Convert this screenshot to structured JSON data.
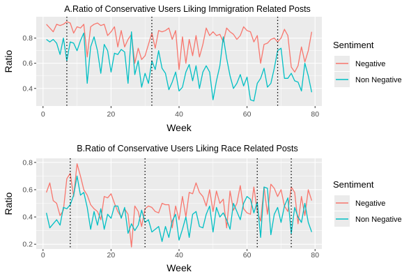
{
  "colors": {
    "negative": "#F8766D",
    "non_negative": "#00BFC4",
    "panel": "#EBEBEB",
    "grid": "#ffffff"
  },
  "chart_data": [
    {
      "type": "line",
      "title": "A.Ratio of Conservative Users Liking Immigration Related Posts",
      "xlabel": "Week",
      "ylabel": "Ratio",
      "xlim": [
        -2,
        82
      ],
      "ylim": [
        0.26,
        0.97
      ],
      "xticks": [
        "0",
        "20",
        "40",
        "60",
        "80"
      ],
      "yticks": [
        "0.4",
        "0.6",
        "0.8"
      ],
      "vlines": [
        7,
        32,
        69
      ],
      "legend": {
        "title": "Sentiment",
        "position": "right",
        "entries": [
          "Negative",
          "Non Negative"
        ]
      },
      "x": [
        1,
        2,
        3,
        4,
        5,
        6,
        7,
        8,
        9,
        10,
        11,
        12,
        13,
        14,
        15,
        16,
        17,
        18,
        19,
        20,
        21,
        22,
        23,
        24,
        25,
        26,
        27,
        28,
        29,
        30,
        31,
        32,
        33,
        34,
        35,
        36,
        37,
        38,
        39,
        40,
        41,
        42,
        43,
        44,
        45,
        46,
        47,
        48,
        49,
        50,
        51,
        52,
        53,
        54,
        55,
        56,
        57,
        58,
        59,
        60,
        61,
        62,
        63,
        64,
        65,
        66,
        67,
        68,
        69,
        70,
        71,
        72,
        73,
        74,
        75,
        76,
        77,
        78,
        79
      ],
      "series": [
        {
          "name": "Negative",
          "values": [
            0.91,
            0.88,
            0.85,
            0.91,
            0.9,
            0.91,
            0.93,
            0.92,
            0.84,
            0.89,
            0.88,
            0.91,
            0.65,
            0.89,
            0.91,
            0.92,
            0.9,
            0.91,
            0.82,
            0.85,
            0.89,
            0.73,
            0.86,
            0.73,
            0.79,
            0.83,
            0.6,
            0.72,
            0.63,
            0.66,
            0.75,
            0.84,
            0.72,
            0.86,
            0.85,
            0.86,
            0.88,
            0.79,
            0.86,
            0.55,
            0.81,
            0.6,
            0.79,
            0.66,
            0.82,
            0.65,
            0.75,
            0.88,
            0.82,
            0.85,
            0.82,
            0.83,
            0.77,
            0.88,
            0.85,
            0.83,
            0.79,
            0.82,
            0.89,
            0.86,
            0.85,
            0.77,
            0.82,
            0.6,
            0.75,
            0.76,
            0.79,
            0.8,
            0.77,
            0.8,
            0.87,
            0.82,
            0.57,
            0.53,
            0.58,
            0.73,
            0.61,
            0.7,
            0.85
          ]
        },
        {
          "name": "Non Negative",
          "values": [
            0.79,
            0.77,
            0.79,
            0.76,
            0.67,
            0.8,
            0.62,
            0.77,
            0.76,
            0.7,
            0.78,
            0.84,
            0.44,
            0.73,
            0.81,
            0.7,
            0.52,
            0.75,
            0.7,
            0.53,
            0.68,
            0.67,
            0.71,
            0.69,
            0.44,
            0.85,
            0.51,
            0.62,
            0.41,
            0.52,
            0.44,
            0.62,
            0.55,
            0.7,
            0.56,
            0.52,
            0.39,
            0.45,
            0.53,
            0.38,
            0.41,
            0.53,
            0.59,
            0.46,
            0.58,
            0.4,
            0.53,
            0.58,
            0.53,
            0.31,
            0.46,
            0.58,
            0.81,
            0.64,
            0.5,
            0.4,
            0.44,
            0.51,
            0.42,
            0.49,
            0.31,
            0.3,
            0.44,
            0.48,
            0.56,
            0.41,
            0.44,
            0.56,
            0.7,
            0.72,
            0.48,
            0.48,
            0.52,
            0.46,
            0.45,
            0.38,
            0.6,
            0.5,
            0.37
          ]
        }
      ]
    },
    {
      "type": "line",
      "title": "B.Ratio of Conservative Users Liking Race Related Posts",
      "xlabel": "Week",
      "ylabel": "Ratio",
      "xlim": [
        -2,
        82
      ],
      "ylim": [
        0.165,
        0.83
      ],
      "xticks": [
        "0",
        "20",
        "40",
        "60",
        "80"
      ],
      "yticks": [
        "0.2",
        "0.4",
        "0.6",
        "0.8"
      ],
      "vlines": [
        8,
        30,
        63,
        73
      ],
      "legend": {
        "title": "Sentiment",
        "position": "right",
        "entries": [
          "Negative",
          "Non Negative"
        ]
      },
      "x": [
        1,
        2,
        3,
        4,
        5,
        6,
        7,
        8,
        9,
        10,
        11,
        12,
        13,
        14,
        15,
        16,
        17,
        18,
        19,
        20,
        21,
        22,
        23,
        24,
        25,
        26,
        27,
        28,
        29,
        30,
        31,
        32,
        33,
        34,
        35,
        36,
        37,
        38,
        39,
        40,
        41,
        42,
        43,
        44,
        45,
        46,
        47,
        48,
        49,
        50,
        51,
        52,
        53,
        54,
        55,
        56,
        57,
        58,
        59,
        60,
        61,
        62,
        63,
        64,
        65,
        66,
        67,
        68,
        69,
        70,
        71,
        72,
        73,
        74,
        75,
        76,
        77,
        78,
        79
      ],
      "series": [
        {
          "name": "Negative",
          "values": [
            0.58,
            0.65,
            0.52,
            0.5,
            0.41,
            0.45,
            0.68,
            0.72,
            0.55,
            0.79,
            0.7,
            0.6,
            0.56,
            0.49,
            0.46,
            0.44,
            0.38,
            0.55,
            0.54,
            0.57,
            0.5,
            0.44,
            0.4,
            0.46,
            0.42,
            0.18,
            0.48,
            0.44,
            0.33,
            0.46,
            0.48,
            0.47,
            0.44,
            0.43,
            0.5,
            0.49,
            0.49,
            0.32,
            0.48,
            0.38,
            0.55,
            0.4,
            0.58,
            0.57,
            0.65,
            0.58,
            0.55,
            0.48,
            0.6,
            0.44,
            0.59,
            0.5,
            0.53,
            0.32,
            0.59,
            0.45,
            0.5,
            0.63,
            0.46,
            0.43,
            0.42,
            0.62,
            0.44,
            0.37,
            0.62,
            0.42,
            0.64,
            0.61,
            0.55,
            0.6,
            0.48,
            0.44,
            0.62,
            0.58,
            0.35,
            0.55,
            0.41,
            0.6,
            0.52
          ]
        },
        {
          "name": "Non Negative",
          "values": [
            0.43,
            0.32,
            0.35,
            0.38,
            0.34,
            0.47,
            0.46,
            0.49,
            0.56,
            0.7,
            0.56,
            0.58,
            0.47,
            0.31,
            0.44,
            0.34,
            0.46,
            0.31,
            0.42,
            0.39,
            0.48,
            0.48,
            0.39,
            0.47,
            0.28,
            0.35,
            0.3,
            0.34,
            0.45,
            0.36,
            0.38,
            0.29,
            0.31,
            0.33,
            0.22,
            0.33,
            0.25,
            0.37,
            0.42,
            0.23,
            0.31,
            0.4,
            0.25,
            0.42,
            0.44,
            0.33,
            0.32,
            0.42,
            0.48,
            0.29,
            0.47,
            0.4,
            0.43,
            0.38,
            0.31,
            0.5,
            0.44,
            0.38,
            0.5,
            0.55,
            0.53,
            0.43,
            0.51,
            0.25,
            0.62,
            0.61,
            0.27,
            0.42,
            0.47,
            0.36,
            0.48,
            0.54,
            0.28,
            0.47,
            0.4,
            0.36,
            0.5,
            0.36,
            0.29
          ]
        }
      ]
    }
  ]
}
